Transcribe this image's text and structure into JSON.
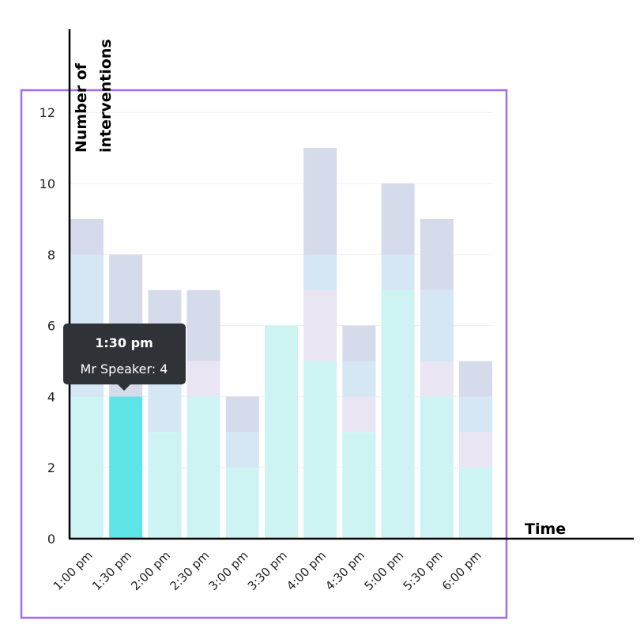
{
  "chart_data": {
    "type": "bar",
    "stacked": true,
    "categories": [
      "1:00 pm",
      "1:30 pm",
      "2:00 pm",
      "2:30 pm",
      "3:00 pm",
      "3:30 pm",
      "4:00 pm",
      "4:30 pm",
      "5:00 pm",
      "5:30 pm",
      "6:00 pm"
    ],
    "series": [
      {
        "color": "#cdf4f3",
        "values": [
          4,
          4,
          3,
          4,
          2,
          6,
          5,
          3,
          7,
          4,
          2
        ]
      },
      {
        "color": "#eae5f3",
        "values": [
          0,
          0,
          0,
          1,
          0,
          0,
          2,
          1,
          0,
          1,
          1
        ]
      },
      {
        "color": "#d5e6f5",
        "values": [
          4,
          0,
          2,
          0,
          1,
          0,
          1,
          1,
          1,
          2,
          1
        ]
      },
      {
        "color": "#d5dbea",
        "values": [
          1,
          4,
          2,
          2,
          1,
          0,
          3,
          1,
          2,
          2,
          1
        ]
      }
    ],
    "highlight": {
      "category_index": 1,
      "series_index": 0,
      "color": "#5ee3e6"
    },
    "yticks": [
      0,
      2,
      4,
      6,
      8,
      10,
      12
    ],
    "ylim": [
      0,
      13
    ],
    "xlabel": "Time",
    "ylabel_lines": [
      "Number of",
      "interventions"
    ],
    "grid": true,
    "tooltip": {
      "title": "1:30 pm",
      "body": "Mr Speaker: 4"
    }
  },
  "colors": {
    "selection_outline": "#9f6ef0",
    "tooltip_bg": "#2f3237",
    "axis": "#000000",
    "grid": "#eeeeee"
  }
}
